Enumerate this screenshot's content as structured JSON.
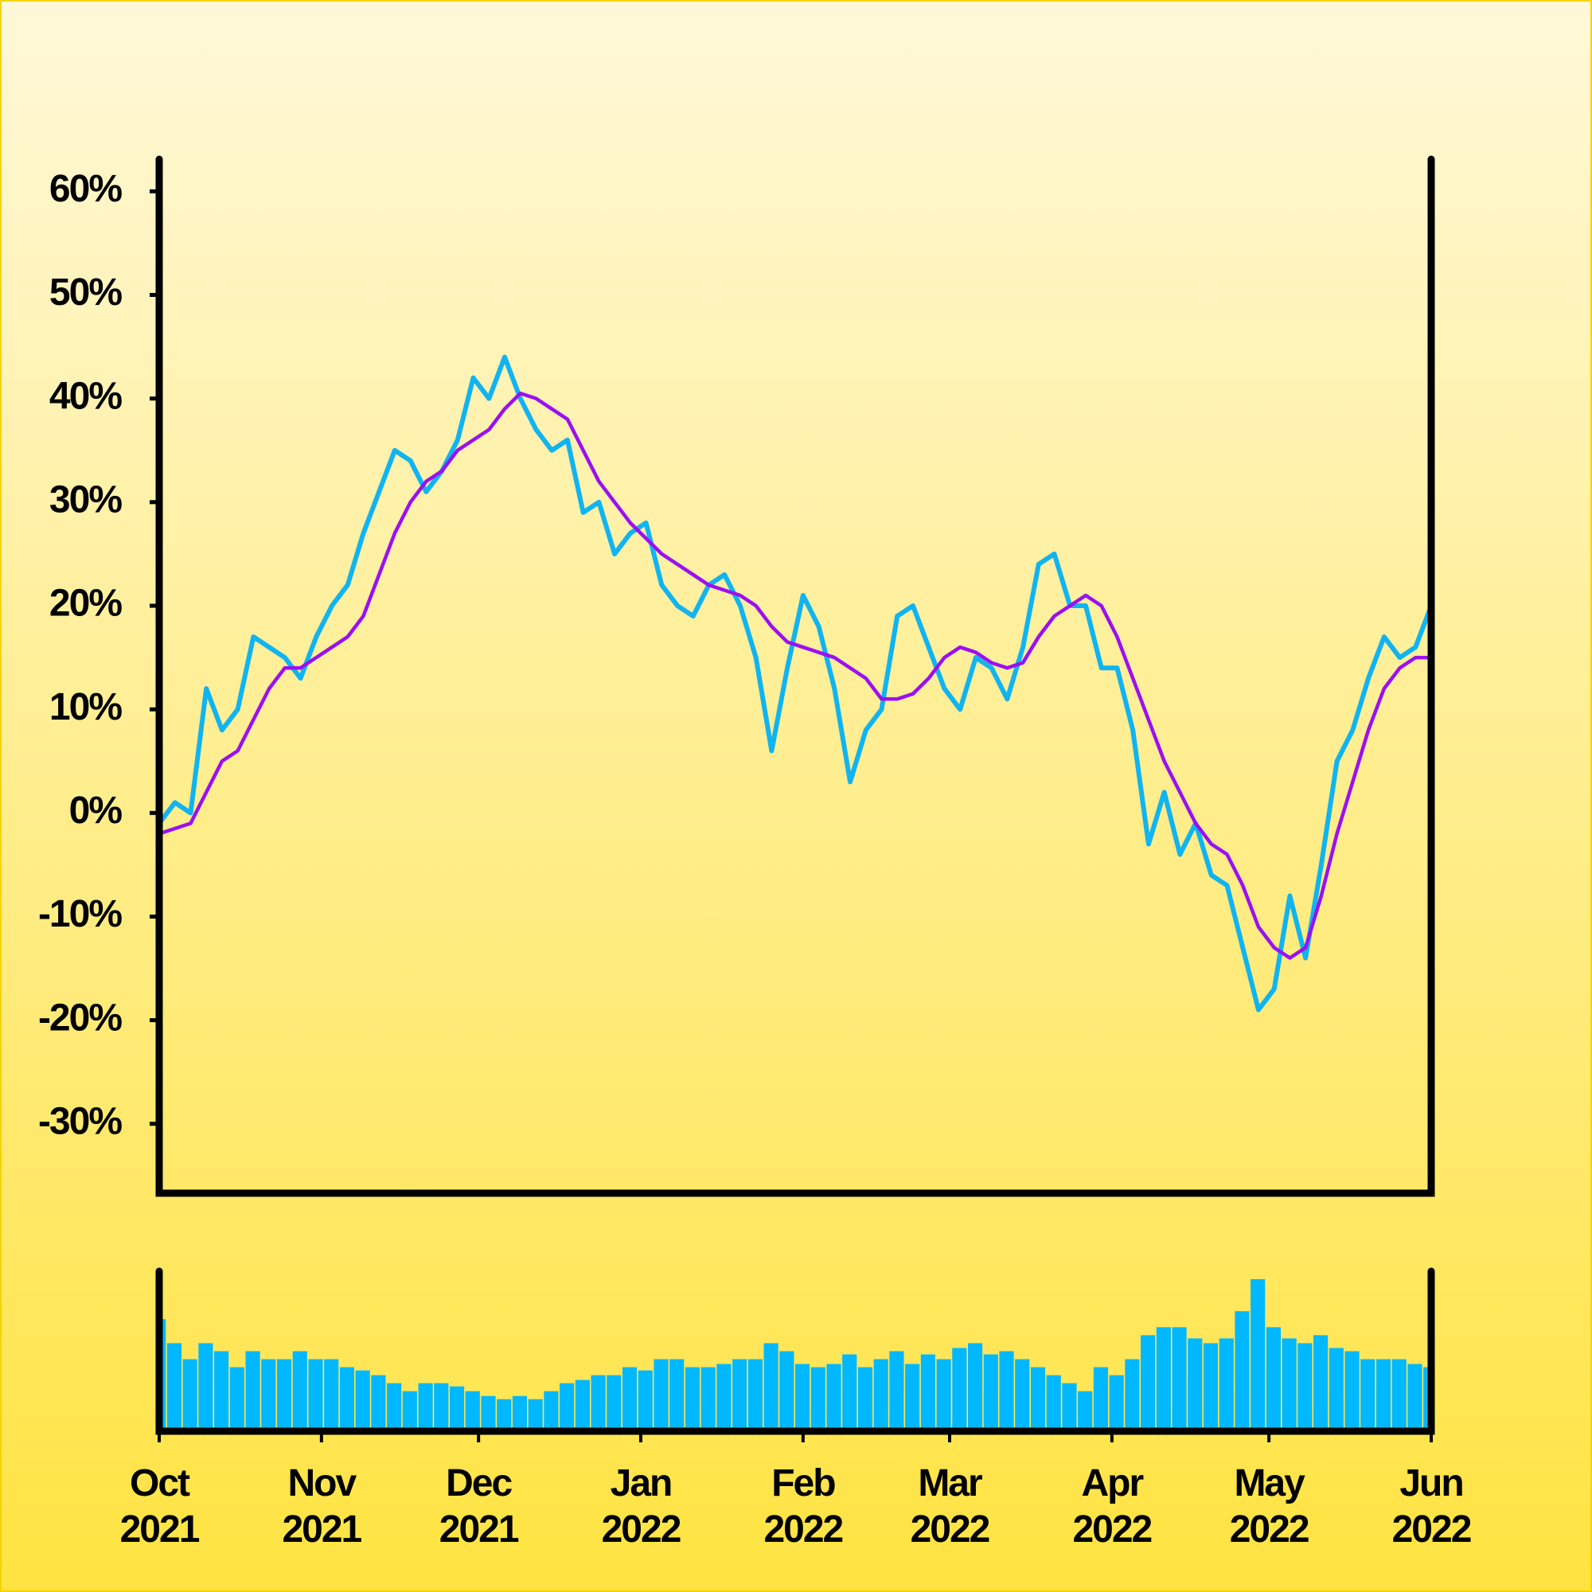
{
  "chart_data": [
    {
      "type": "line",
      "x": [
        0,
        3,
        6,
        9,
        12,
        15,
        18,
        21,
        24,
        27,
        30,
        33,
        36,
        39,
        42,
        45,
        48,
        51,
        54,
        57,
        60,
        63,
        66,
        69,
        72,
        75,
        78,
        81,
        84,
        87,
        90,
        93,
        96,
        99,
        102,
        105,
        108,
        111,
        114,
        117,
        120,
        123,
        126,
        129,
        132,
        135,
        138,
        141,
        144,
        147,
        150,
        153,
        156,
        159,
        162,
        165,
        168,
        171,
        174,
        177,
        180,
        183,
        186,
        189,
        192,
        195,
        198,
        201,
        204,
        207,
        210,
        213,
        216,
        219,
        222,
        225,
        228,
        231,
        234,
        237,
        240,
        243
      ],
      "series": [
        {
          "color": "#10b4f0",
          "values": [
            -1,
            1,
            0,
            12,
            8,
            10,
            17,
            16,
            15,
            13,
            17,
            20,
            22,
            27,
            31,
            35,
            34,
            31,
            33,
            36,
            42,
            40,
            44,
            40,
            37,
            35,
            36,
            29,
            30,
            25,
            27,
            28,
            22,
            20,
            19,
            22,
            23,
            20,
            15,
            6,
            14,
            21,
            18,
            12,
            3,
            8,
            10,
            19,
            20,
            16,
            12,
            10,
            15,
            14,
            11,
            16,
            24,
            25,
            20,
            20,
            14,
            14,
            8,
            -3,
            2,
            -4,
            -1,
            -6,
            -7,
            -13,
            -19,
            -17,
            -8,
            -14,
            -5,
            5,
            8,
            13,
            17,
            15,
            16,
            20
          ]
        },
        {
          "color": "#9b10f0",
          "values": [
            -2,
            -1.5,
            -1,
            2,
            5,
            6,
            9,
            12,
            14,
            14,
            15,
            16,
            17,
            19,
            23,
            27,
            30,
            32,
            33,
            35,
            36,
            37,
            39,
            40.5,
            40,
            39,
            38,
            35,
            32,
            30,
            28,
            26.5,
            25,
            24,
            23,
            22,
            21.5,
            21,
            20,
            18,
            16.5,
            16,
            15.5,
            15,
            14,
            13,
            11,
            11,
            11.5,
            13,
            15,
            16,
            15.5,
            14.5,
            14,
            14.5,
            17,
            19,
            20,
            21,
            20,
            17,
            13,
            9,
            5,
            2,
            -1,
            -3,
            -4,
            -7,
            -11,
            -13,
            -14,
            -13,
            -8,
            -2,
            3,
            8,
            12,
            14,
            15,
            15
          ]
        }
      ],
      "xlim": [
        0,
        243
      ],
      "ylim": [
        -36.7,
        63.1
      ],
      "yticks": [
        {
          "value": 60,
          "label": "60%"
        },
        {
          "value": 50,
          "label": "50%"
        },
        {
          "value": 40,
          "label": "40%"
        },
        {
          "value": 30,
          "label": "30%"
        },
        {
          "value": 20,
          "label": "20%"
        },
        {
          "value": 10,
          "label": "10%"
        },
        {
          "value": 0,
          "label": "0%"
        },
        {
          "value": -10,
          "label": "-10%"
        },
        {
          "value": -20,
          "label": "-20%"
        },
        {
          "value": -30,
          "label": "-30%"
        }
      ]
    },
    {
      "type": "bar",
      "x": [
        0,
        3,
        6,
        9,
        12,
        15,
        18,
        21,
        24,
        27,
        30,
        33,
        36,
        39,
        42,
        45,
        48,
        51,
        54,
        57,
        60,
        63,
        66,
        69,
        72,
        75,
        78,
        81,
        84,
        87,
        90,
        93,
        96,
        99,
        102,
        105,
        108,
        111,
        114,
        117,
        120,
        123,
        126,
        129,
        132,
        135,
        138,
        141,
        144,
        147,
        150,
        153,
        156,
        159,
        162,
        165,
        168,
        171,
        174,
        177,
        180,
        183,
        186,
        189,
        192,
        195,
        198,
        201,
        204,
        207,
        210,
        213,
        216,
        219,
        222,
        225,
        228,
        231,
        234,
        237,
        240,
        243
      ],
      "values": [
        70,
        55,
        45,
        55,
        50,
        40,
        50,
        45,
        45,
        50,
        45,
        45,
        40,
        38,
        35,
        30,
        25,
        30,
        30,
        28,
        25,
        22,
        20,
        22,
        20,
        25,
        30,
        32,
        35,
        35,
        40,
        38,
        45,
        45,
        40,
        40,
        42,
        45,
        45,
        55,
        50,
        42,
        40,
        42,
        48,
        40,
        45,
        50,
        42,
        48,
        45,
        52,
        55,
        48,
        50,
        45,
        40,
        35,
        30,
        25,
        40,
        35,
        45,
        60,
        65,
        65,
        58,
        55,
        58,
        75,
        95,
        65,
        58,
        55,
        60,
        52,
        50,
        45,
        45,
        45,
        42,
        40
      ],
      "color": "#00b8ff",
      "xlim": [
        0,
        243
      ],
      "ylim": [
        0,
        100
      ],
      "xticks": [
        {
          "value": 0,
          "label": "Oct 2021"
        },
        {
          "value": 31,
          "label": "Nov 2021"
        },
        {
          "value": 61,
          "label": "Dec 2021"
        },
        {
          "value": 92,
          "label": "Jan 2022"
        },
        {
          "value": 123,
          "label": "Feb 2022"
        },
        {
          "value": 151,
          "label": "Mar 2022"
        },
        {
          "value": 182,
          "label": "Apr 2022"
        },
        {
          "value": 212,
          "label": "May 2022"
        },
        {
          "value": 243,
          "label": "Jun 2022"
        }
      ]
    }
  ]
}
